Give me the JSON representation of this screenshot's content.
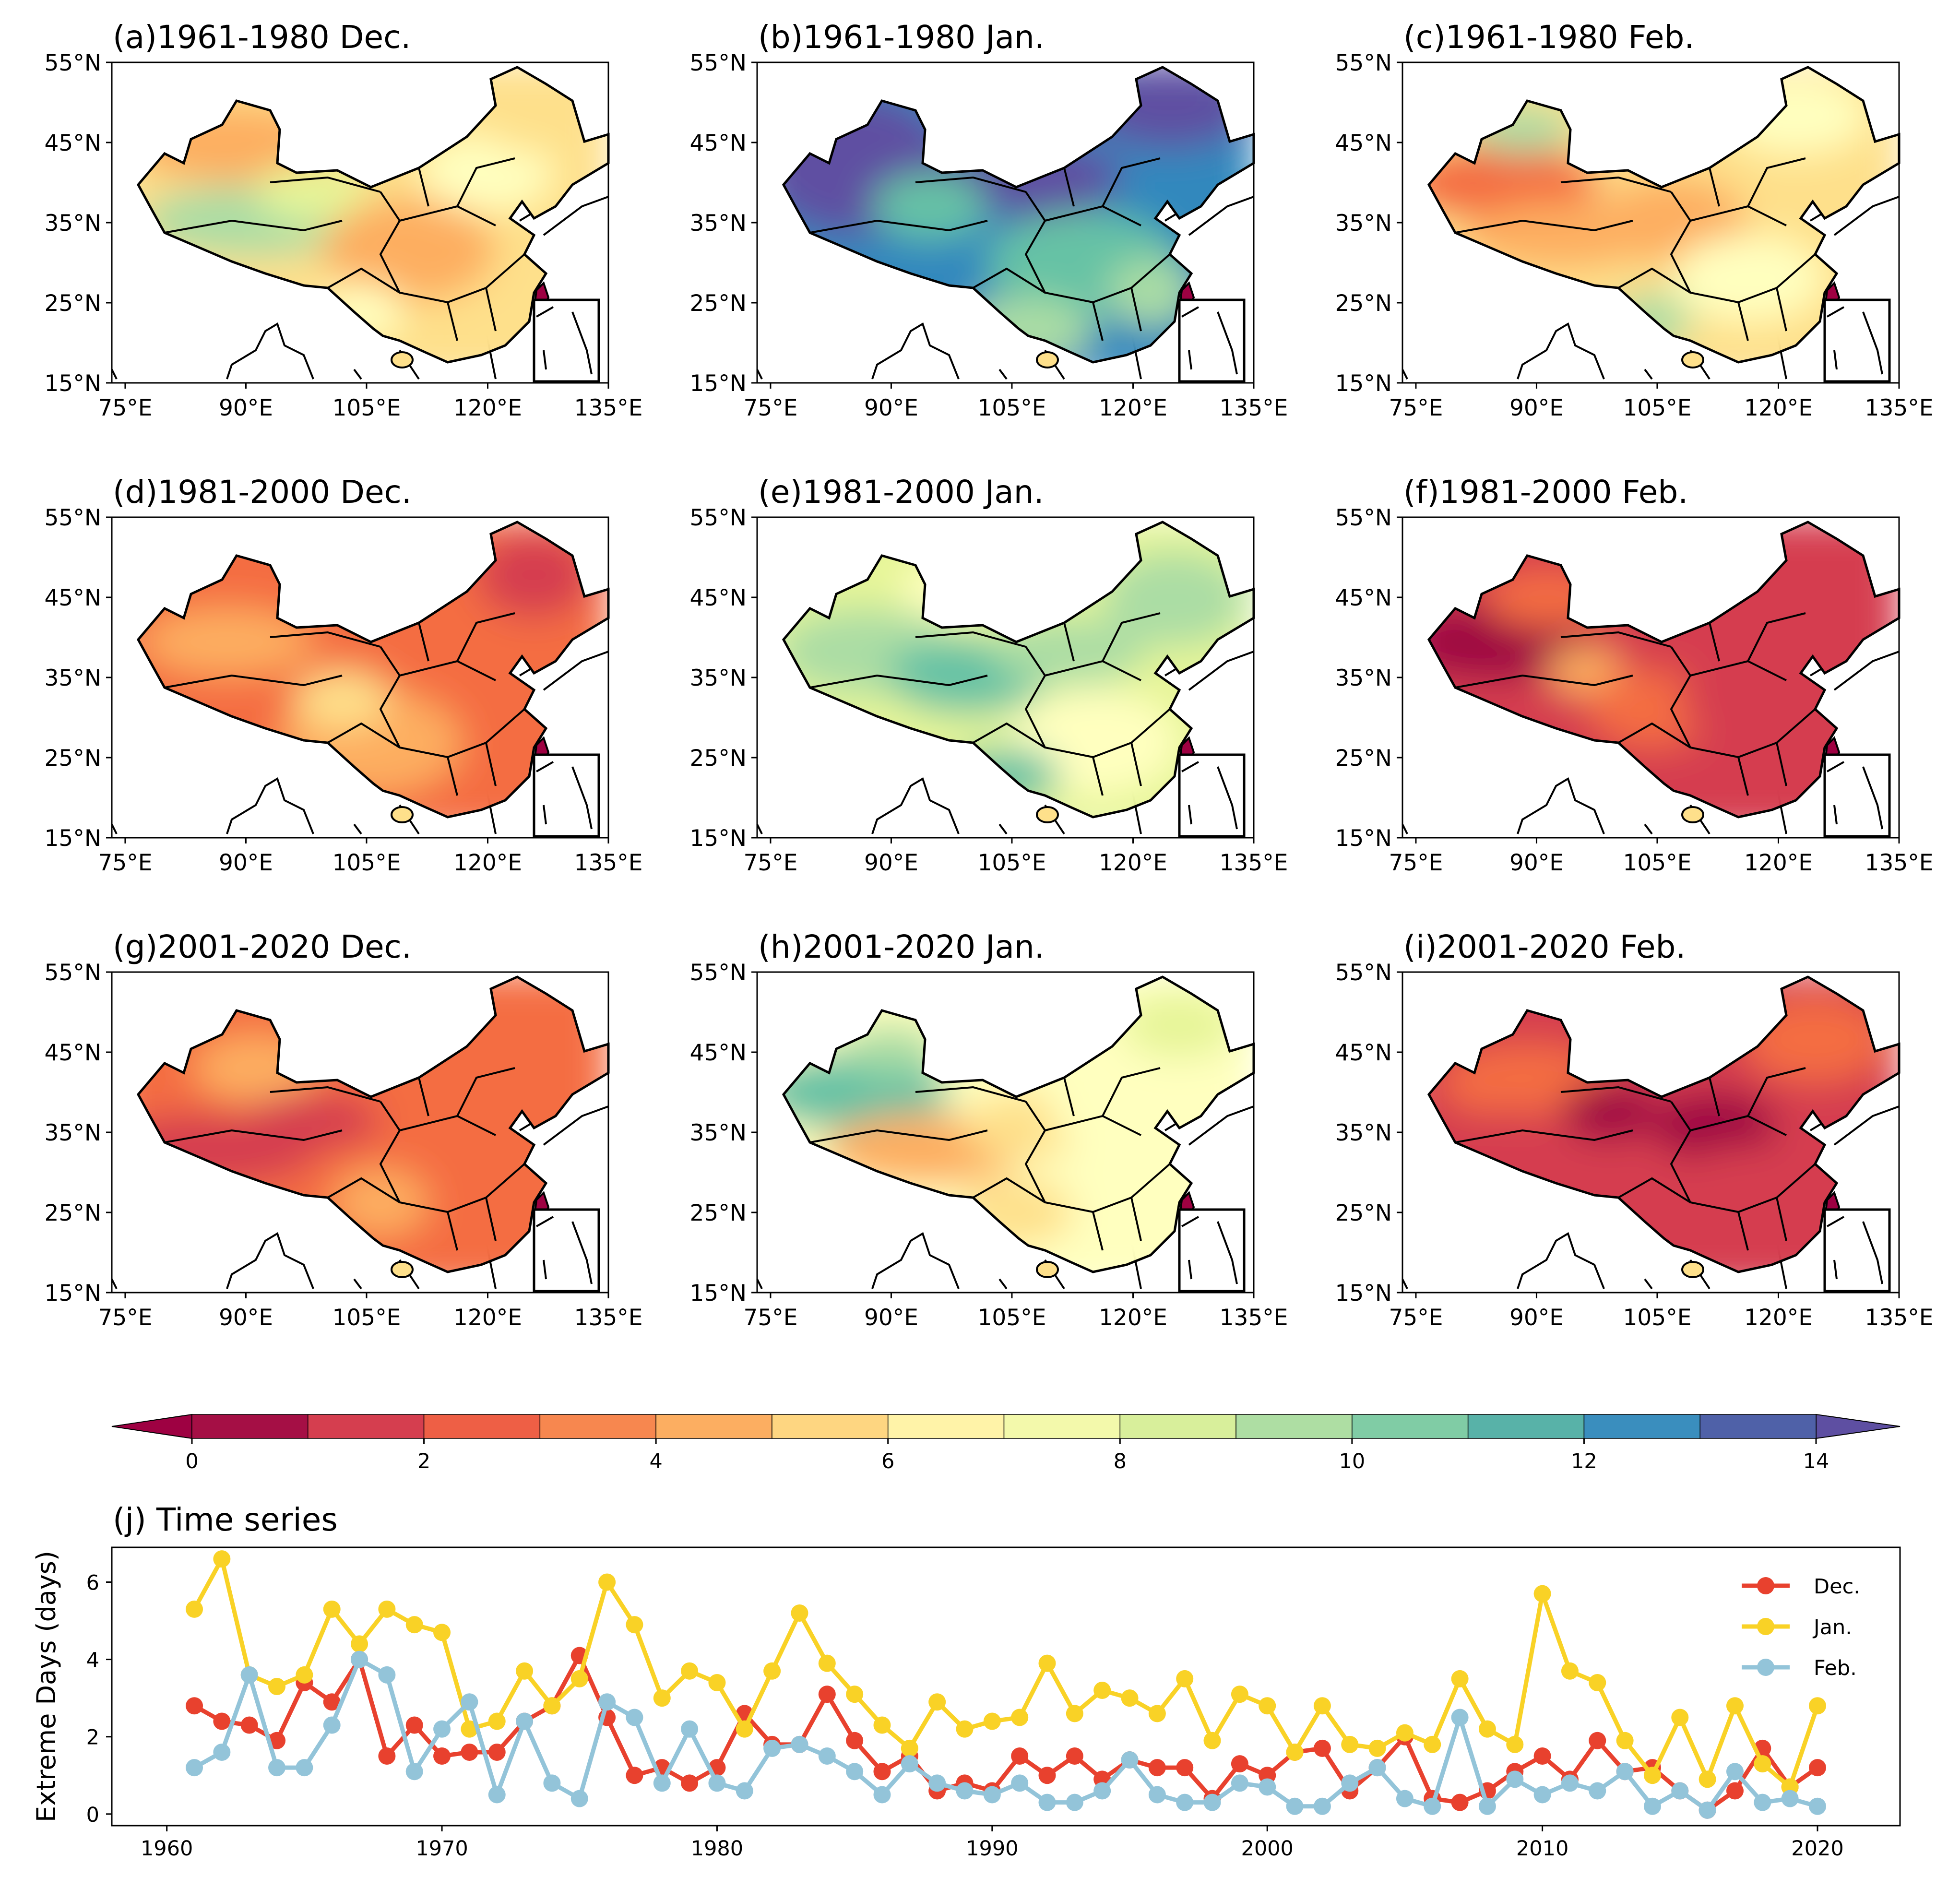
{
  "panels": [
    {
      "title": "(a)1961-1980 Dec.",
      "scheme": "dec1"
    },
    {
      "title": "(b)1961-1980 Jan.",
      "scheme": "jan1"
    },
    {
      "title": "(c)1961-1980 Feb.",
      "scheme": "feb1"
    },
    {
      "title": "(d)1981-2000 Dec.",
      "scheme": "dec2"
    },
    {
      "title": "(e)1981-2000 Jan.",
      "scheme": "jan2"
    },
    {
      "title": "(f)1981-2000 Feb.",
      "scheme": "feb2"
    },
    {
      "title": "(g)2001-2020 Dec.",
      "scheme": "dec3"
    },
    {
      "title": "(h)2001-2020 Jan.",
      "scheme": "jan3"
    },
    {
      "title": "(i)2001-2020 Feb.",
      "scheme": "feb3"
    }
  ],
  "map_axes": {
    "lat_ticks": [
      "55°N",
      "45°N",
      "35°N",
      "25°N",
      "15°N"
    ],
    "lon_ticks": [
      "75°E",
      "90°E",
      "105°E",
      "120°E",
      "135°E"
    ]
  },
  "colorbar": {
    "ticks": [
      "0",
      "2",
      "4",
      "6",
      "8",
      "10",
      "12",
      "14"
    ],
    "colors": [
      "#9e0142",
      "#d53e4f",
      "#f46d43",
      "#fdae61",
      "#fee08b",
      "#ffffbf",
      "#e6f598",
      "#abdda4",
      "#66c2a5",
      "#3288bd",
      "#5e4fa2"
    ]
  },
  "chart_data": {
    "type": "line",
    "title": "(j) Time series",
    "ylabel": "Extreme Days (days)",
    "xlabel": "",
    "xlim": [
      1958,
      2023
    ],
    "ylim": [
      -0.3,
      6.9
    ],
    "x_ticks": [
      1960,
      1970,
      1980,
      1990,
      2000,
      2010,
      2020
    ],
    "y_ticks": [
      0,
      2,
      4,
      6
    ],
    "legend_position": "top-right",
    "x": [
      1961,
      1962,
      1963,
      1964,
      1965,
      1966,
      1967,
      1968,
      1969,
      1970,
      1971,
      1972,
      1973,
      1974,
      1975,
      1976,
      1977,
      1978,
      1979,
      1980,
      1981,
      1982,
      1983,
      1984,
      1985,
      1986,
      1987,
      1988,
      1989,
      1990,
      1991,
      1992,
      1993,
      1994,
      1995,
      1996,
      1997,
      1998,
      1999,
      2000,
      2001,
      2002,
      2003,
      2004,
      2005,
      2006,
      2007,
      2008,
      2009,
      2010,
      2011,
      2012,
      2013,
      2014,
      2015,
      2016,
      2017,
      2018,
      2019,
      2020
    ],
    "series": [
      {
        "name": "Dec.",
        "color": "#e8412e",
        "values": [
          2.8,
          2.4,
          2.3,
          1.9,
          3.4,
          2.9,
          4.0,
          1.5,
          2.3,
          1.5,
          1.6,
          1.6,
          2.4,
          2.8,
          4.1,
          2.5,
          1.0,
          1.2,
          0.8,
          1.2,
          2.6,
          1.8,
          1.8,
          3.1,
          1.9,
          1.1,
          1.5,
          0.6,
          0.8,
          0.6,
          1.5,
          1.0,
          1.5,
          0.9,
          1.4,
          1.2,
          1.2,
          0.4,
          1.3,
          1.0,
          1.6,
          1.7,
          0.6,
          1.2,
          2.0,
          0.4,
          0.3,
          0.6,
          1.1,
          1.5,
          0.9,
          1.9,
          1.1,
          1.2,
          0.6,
          0.1,
          0.6,
          1.7,
          0.7,
          1.2
        ]
      },
      {
        "name": "Jan.",
        "color": "#f9d226",
        "values": [
          5.3,
          6.6,
          3.6,
          3.3,
          3.6,
          5.3,
          4.4,
          5.3,
          4.9,
          4.7,
          2.2,
          2.4,
          3.7,
          2.8,
          3.5,
          6.0,
          4.9,
          3.0,
          3.7,
          3.4,
          2.2,
          3.7,
          5.2,
          3.9,
          3.1,
          2.3,
          1.7,
          2.9,
          2.2,
          2.4,
          2.5,
          3.9,
          2.6,
          3.2,
          3.0,
          2.6,
          3.5,
          1.9,
          3.1,
          2.8,
          1.6,
          2.8,
          1.8,
          1.7,
          2.1,
          1.8,
          3.5,
          2.2,
          1.8,
          5.7,
          3.7,
          3.4,
          1.9,
          1.0,
          2.5,
          0.9,
          2.8,
          1.3,
          0.7,
          2.8
        ]
      },
      {
        "name": "Feb.",
        "color": "#93c4d9",
        "values": [
          1.2,
          1.6,
          3.6,
          1.2,
          1.2,
          2.3,
          4.0,
          3.6,
          1.1,
          2.2,
          2.9,
          0.5,
          2.4,
          0.8,
          0.4,
          2.9,
          2.5,
          0.8,
          2.2,
          0.8,
          0.6,
          1.7,
          1.8,
          1.5,
          1.1,
          0.5,
          1.3,
          0.8,
          0.6,
          0.5,
          0.8,
          0.3,
          0.3,
          0.6,
          1.4,
          0.5,
          0.3,
          0.3,
          0.8,
          0.7,
          0.2,
          0.2,
          0.8,
          1.2,
          0.4,
          0.2,
          2.5,
          0.2,
          0.9,
          0.5,
          0.8,
          0.6,
          1.1,
          0.2,
          0.6,
          0.1,
          1.1,
          0.3,
          0.4,
          0.2
        ]
      }
    ]
  }
}
